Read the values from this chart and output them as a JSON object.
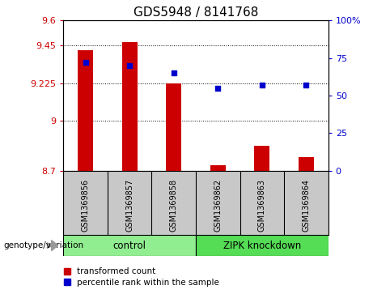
{
  "title": "GDS5948 / 8141768",
  "categories": [
    "GSM1369856",
    "GSM1369857",
    "GSM1369858",
    "GSM1369862",
    "GSM1369863",
    "GSM1369864"
  ],
  "bar_values": [
    9.42,
    9.47,
    9.225,
    8.73,
    8.85,
    8.78
  ],
  "bar_bottom": 8.7,
  "scatter_values": [
    72,
    70,
    65,
    55,
    57,
    57
  ],
  "bar_color": "#cc0000",
  "scatter_color": "#0000cc",
  "ylim_left": [
    8.7,
    9.6
  ],
  "ylim_right": [
    0,
    100
  ],
  "yticks_left": [
    8.7,
    9.0,
    9.225,
    9.45,
    9.6
  ],
  "ytick_labels_left": [
    "8.7",
    "9",
    "9.225",
    "9.45",
    "9.6"
  ],
  "yticks_right": [
    0,
    25,
    50,
    75,
    100
  ],
  "ytick_labels_right": [
    "0",
    "25",
    "50",
    "75",
    "100%"
  ],
  "grid_values": [
    9.0,
    9.225,
    9.45
  ],
  "group1_label": "control",
  "group2_label": "ZIPK knockdown",
  "group1_color": "#90ee90",
  "group2_color": "#55dd55",
  "genotype_label": "genotype/variation",
  "legend1_label": "transformed count",
  "legend2_label": "percentile rank within the sample",
  "background_plot": "#ffffff",
  "background_table": "#c8c8c8",
  "title_fontsize": 11,
  "tick_fontsize": 8,
  "bar_width": 0.35
}
